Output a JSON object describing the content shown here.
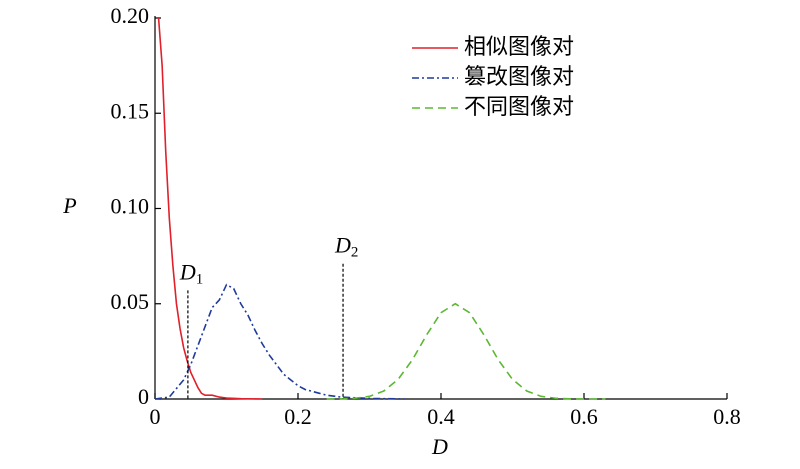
{
  "chart_data": {
    "type": "line",
    "xlabel": "D",
    "ylabel": "P",
    "xlim": [
      0,
      0.8
    ],
    "xticks": [
      0,
      0.2,
      0.4,
      0.6,
      0.8
    ],
    "ylim": [
      0,
      0.2
    ],
    "yticks": [
      0,
      0.05,
      {
        "value": 0.1,
        "label": "0.10"
      },
      0.15,
      {
        "value": 0.2,
        "label": "0.20"
      }
    ],
    "legend": "top-center",
    "series": [
      {
        "name": "相似图像对",
        "color": "#e0202a",
        "dash": "solid",
        "x": [
          0.005,
          0.01,
          0.015,
          0.02,
          0.025,
          0.03,
          0.035,
          0.04,
          0.045,
          0.05,
          0.055,
          0.06,
          0.065,
          0.07,
          0.08,
          0.09,
          0.1,
          0.12,
          0.15
        ],
        "values": [
          0.2,
          0.175,
          0.13,
          0.095,
          0.07,
          0.05,
          0.037,
          0.027,
          0.02,
          0.014,
          0.01,
          0.006,
          0.003,
          0.002,
          0.002,
          0.001,
          0.0005,
          0.0002,
          0
        ]
      },
      {
        "name": "篡改图像对",
        "color": "#1f3a9c",
        "dash": "dashdot",
        "x": [
          0,
          0.02,
          0.04,
          0.05,
          0.06,
          0.07,
          0.08,
          0.09,
          0.1,
          0.11,
          0.12,
          0.13,
          0.14,
          0.15,
          0.16,
          0.17,
          0.18,
          0.19,
          0.2,
          0.21,
          0.22,
          0.23,
          0.24,
          0.26,
          0.3,
          0.35
        ],
        "values": [
          0,
          0.001,
          0.01,
          0.018,
          0.028,
          0.038,
          0.048,
          0.052,
          0.06,
          0.058,
          0.05,
          0.044,
          0.036,
          0.029,
          0.023,
          0.018,
          0.013,
          0.01,
          0.007,
          0.005,
          0.004,
          0.003,
          0.002,
          0.001,
          0.0003,
          0
        ]
      },
      {
        "name": "不同图像对",
        "color": "#5cb832",
        "dash": "dashed",
        "x": [
          0.24,
          0.26,
          0.28,
          0.3,
          0.32,
          0.34,
          0.36,
          0.38,
          0.4,
          0.42,
          0.44,
          0.46,
          0.48,
          0.5,
          0.52,
          0.54,
          0.56,
          0.58,
          0.6,
          0.63
        ],
        "values": [
          0,
          0.0001,
          0.0004,
          0.0014,
          0.0042,
          0.0103,
          0.0206,
          0.0337,
          0.0453,
          0.05,
          0.0453,
          0.0337,
          0.0206,
          0.0103,
          0.0042,
          0.0014,
          0.0004,
          0.0001,
          0,
          0
        ]
      }
    ],
    "annotations": [
      {
        "label": "D",
        "subscript": "1",
        "x": 0.046,
        "y": 0.057
      },
      {
        "label": "D",
        "subscript": "2",
        "x": 0.263,
        "y": 0.071
      }
    ]
  }
}
